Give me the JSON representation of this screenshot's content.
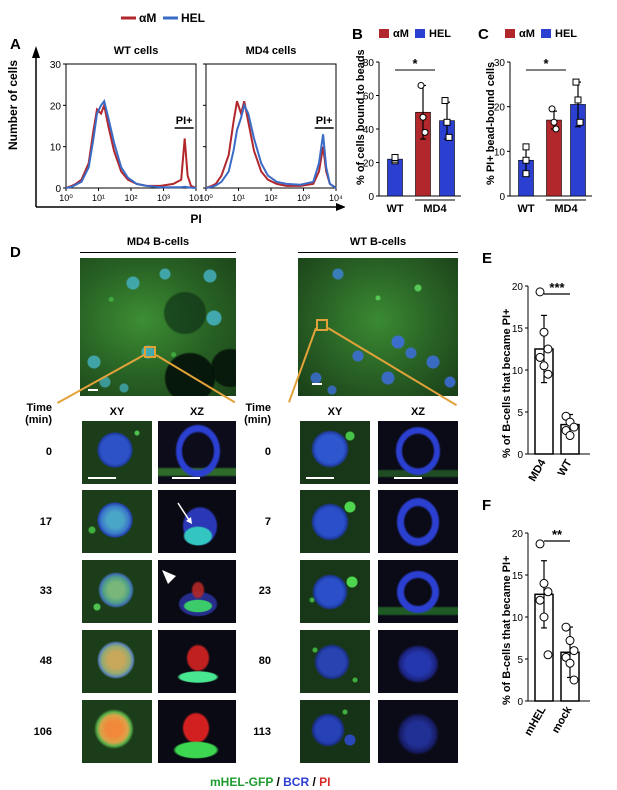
{
  "panels": {
    "A": "A",
    "B": "B",
    "C": "C",
    "D": "D",
    "E": "E",
    "F": "F"
  },
  "legend": {
    "am": "αM",
    "hel": "HEL"
  },
  "colors": {
    "am": "#b1272c",
    "hel": "#3a6cc7",
    "gfp": "#1f9a2e",
    "bcr": "#2b3fd1",
    "pi": "#d62b2b",
    "zoom": "#e2a23a"
  },
  "panelA": {
    "ylabel": "Number of cells",
    "xlabel": "PI",
    "subplots": [
      {
        "title": "WT cells"
      },
      {
        "title": "MD4 cells"
      }
    ],
    "yticks": [
      "0",
      "10",
      "20",
      "30"
    ],
    "xticks": [
      "10⁰",
      "10¹",
      "10²",
      "10³",
      "10⁴"
    ],
    "pi_gate": "PI+"
  },
  "panelD": {
    "md4_title": "MD4 B-cells",
    "wt_title": "WT B-cells",
    "time_header": [
      "Time",
      "(min)"
    ],
    "col_xy": "XY",
    "col_xz": "XZ",
    "md4_times": [
      "0",
      "17",
      "33",
      "48",
      "106"
    ],
    "wt_times": [
      "0",
      "7",
      "23",
      "80",
      "113"
    ],
    "caption": {
      "gfp": "mHEL-GFP",
      "sep1": " / ",
      "bcr": "BCR",
      "sep2": " / ",
      "pi": "PI"
    }
  },
  "chart_data": [
    {
      "id": "A-WT",
      "type": "line",
      "title": "WT cells",
      "xlabel": "PI",
      "ylabel": "Number of cells",
      "x_scale": "log",
      "xlim": [
        1,
        10000
      ],
      "ylim": [
        0,
        30
      ],
      "series": [
        {
          "name": "αM",
          "x": [
            1,
            1.5,
            2,
            3,
            5,
            7,
            9,
            12,
            15,
            20,
            30,
            50,
            80,
            150,
            300,
            800,
            2000,
            3500,
            4500,
            5500,
            7000,
            10000
          ],
          "values": [
            0,
            0.5,
            1,
            2,
            6,
            14,
            19,
            18,
            20,
            15,
            9,
            4,
            2,
            1,
            0.5,
            0.5,
            1,
            2,
            12,
            3,
            0.5,
            0
          ]
        },
        {
          "name": "HEL",
          "x": [
            1,
            1.5,
            2,
            3,
            5,
            7,
            9,
            12,
            15,
            20,
            30,
            50,
            80,
            150,
            300,
            800,
            2000,
            3500,
            4500,
            5500,
            7000,
            10000
          ],
          "values": [
            0,
            0.3,
            0.8,
            1.5,
            5,
            12,
            18,
            20,
            21,
            17,
            11,
            5,
            2.5,
            1,
            0.5,
            0.2,
            0.2,
            0.2,
            0.3,
            0.2,
            0.1,
            0
          ]
        }
      ]
    },
    {
      "id": "A-MD4",
      "type": "line",
      "title": "MD4 cells",
      "xlabel": "PI",
      "x_scale": "log",
      "xlim": [
        1,
        10000
      ],
      "ylim": [
        0,
        30
      ],
      "series": [
        {
          "name": "αM",
          "x": [
            1,
            1.5,
            2,
            3,
            5,
            7,
            9,
            12,
            15,
            20,
            30,
            50,
            80,
            150,
            300,
            800,
            2000,
            3000,
            4000,
            5000,
            6500,
            10000
          ],
          "values": [
            0,
            0.5,
            1,
            3,
            8,
            16,
            21,
            18,
            21,
            16,
            9,
            4,
            2,
            1,
            0.5,
            0.5,
            1,
            4,
            10,
            4,
            1,
            0
          ]
        },
        {
          "name": "HEL",
          "x": [
            1,
            1.5,
            2,
            3,
            5,
            7,
            9,
            12,
            15,
            20,
            30,
            50,
            80,
            150,
            300,
            800,
            2000,
            3000,
            4000,
            5000,
            6500,
            10000
          ],
          "values": [
            0,
            0.3,
            0.6,
            1.5,
            4,
            9,
            14,
            17,
            20,
            18,
            12,
            6,
            3,
            1.5,
            1,
            0.8,
            1.5,
            6,
            13,
            5,
            1,
            0
          ]
        }
      ]
    },
    {
      "id": "B",
      "type": "bar",
      "ylabel": "% of cells bound to beads",
      "ylim": [
        0,
        80
      ],
      "yticks": [
        "0",
        "20",
        "40",
        "60",
        "80"
      ],
      "groups": [
        "WT",
        "MD4"
      ],
      "bars": [
        {
          "group": "WT",
          "series": "HEL",
          "value": 22,
          "err": 2,
          "points": [
            21,
            22,
            23
          ]
        },
        {
          "group": "MD4",
          "series": "αM",
          "value": 50,
          "err": 16,
          "points": [
            66,
            47,
            38
          ]
        },
        {
          "group": "MD4",
          "series": "HEL",
          "value": 45,
          "err": 11,
          "points": [
            57,
            44,
            35
          ]
        }
      ],
      "significance": "*"
    },
    {
      "id": "C",
      "type": "bar",
      "ylabel": "% PI+ bead-bound cells",
      "ylim": [
        0,
        30
      ],
      "yticks": [
        "0",
        "10",
        "20",
        "30"
      ],
      "groups": [
        "WT",
        "MD4"
      ],
      "bars": [
        {
          "group": "WT",
          "series": "HEL",
          "value": 8,
          "err": 3,
          "points": [
            11,
            8,
            5
          ]
        },
        {
          "group": "MD4",
          "series": "αM",
          "value": 17,
          "err": 2,
          "points": [
            19.5,
            16.5,
            15
          ]
        },
        {
          "group": "MD4",
          "series": "HEL",
          "value": 20.5,
          "err": 5,
          "points": [
            25.5,
            21.5,
            16.5
          ]
        }
      ],
      "significance": "*"
    },
    {
      "id": "E",
      "type": "bar",
      "ylabel": "% of B-cells that became PI+",
      "ylim": [
        0,
        20
      ],
      "yticks": [
        "0",
        "5",
        "10",
        "15",
        "20"
      ],
      "categories": [
        "MD4",
        "WT"
      ],
      "values": [
        12.5,
        3.5
      ],
      "errors": [
        4,
        1.2
      ],
      "points": [
        [
          19.3,
          14.5,
          12.5,
          11.5,
          10.5,
          9.5
        ],
        [
          4.5,
          3.8,
          3.2,
          2.8,
          2.2
        ]
      ],
      "significance": "***"
    },
    {
      "id": "F",
      "type": "bar",
      "ylabel": "% of B-cells that became PI+",
      "ylim": [
        0,
        20
      ],
      "yticks": [
        "0",
        "5",
        "10",
        "15",
        "20"
      ],
      "categories": [
        "mHEL",
        "mock"
      ],
      "values": [
        12.7,
        5.8
      ],
      "errors": [
        4,
        3
      ],
      "points": [
        [
          18.7,
          14,
          13,
          12,
          10,
          5.5
        ],
        [
          8.8,
          7.2,
          6,
          5.2,
          4.5,
          2.5
        ]
      ],
      "significance": "**"
    }
  ]
}
